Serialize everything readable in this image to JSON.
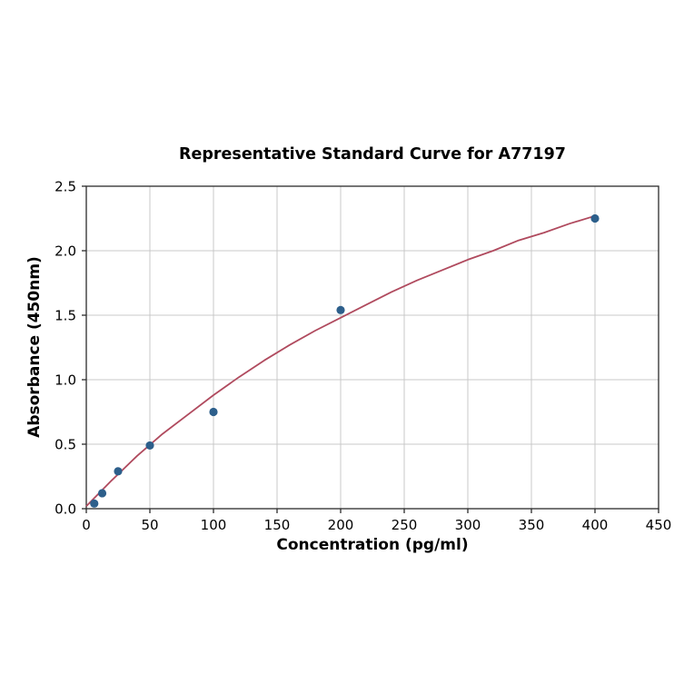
{
  "chart_data": {
    "type": "scatter",
    "title": "Representative Standard Curve for A77197",
    "xlabel": "Concentration (pg/ml)",
    "ylabel": "Absorbance (450nm)",
    "xlim": [
      0,
      450
    ],
    "ylim": [
      0,
      2.5
    ],
    "grid": true,
    "legend": "none",
    "x_ticks": [
      0,
      50,
      100,
      150,
      200,
      250,
      300,
      350,
      400,
      450
    ],
    "x_tick_labels": [
      "0",
      "50",
      "100",
      "150",
      "200",
      "250",
      "300",
      "350",
      "400",
      "450"
    ],
    "y_ticks": [
      0.0,
      0.5,
      1.0,
      1.5,
      2.0,
      2.5
    ],
    "y_tick_labels": [
      "0.0",
      "0.5",
      "1.0",
      "1.5",
      "2.0",
      "2.5"
    ],
    "points": {
      "x": [
        6.25,
        12.5,
        25,
        50,
        100,
        200,
        400
      ],
      "y": [
        0.04,
        0.12,
        0.29,
        0.49,
        0.75,
        1.54,
        2.25
      ]
    },
    "fit_curve": {
      "x": [
        0,
        20,
        40,
        60,
        80,
        100,
        120,
        140,
        160,
        180,
        200,
        220,
        240,
        260,
        280,
        300,
        320,
        340,
        360,
        380,
        400
      ],
      "y": [
        0.02,
        0.22,
        0.41,
        0.58,
        0.73,
        0.88,
        1.02,
        1.15,
        1.27,
        1.38,
        1.48,
        1.58,
        1.68,
        1.77,
        1.85,
        1.93,
        2.0,
        2.08,
        2.14,
        2.21,
        2.27
      ]
    },
    "colors": {
      "points": "#2d5f8b",
      "curve": "#b04a5e",
      "grid": "#c9c9c9",
      "frame": "#2b2b2b",
      "tick_text": "#000000"
    }
  }
}
